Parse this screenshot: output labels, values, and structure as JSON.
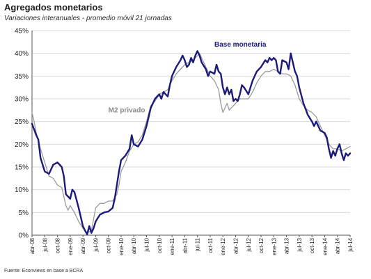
{
  "header": {
    "title": "Agregados monetarios",
    "subtitle": "Variaciones interanuales - promedio móvil 21 jornadas"
  },
  "footer": {
    "source": "Fuente: Econviews en base a BCRA"
  },
  "colors": {
    "base_monetaria": "#1a1a7a",
    "m2_privado": "#9a9a9a",
    "m2_label": "#8a8a8a",
    "grid": "#d9d9d9",
    "axis": "#555555"
  },
  "chart_data": {
    "type": "line",
    "title": "Agregados monetarios",
    "subtitle": "Variaciones interanuales - promedio móvil 21 jornadas",
    "xlabel": "",
    "ylabel": "",
    "ylim": [
      0,
      45
    ],
    "yticks": [
      "0%",
      "5%",
      "10%",
      "15%",
      "20%",
      "25%",
      "30%",
      "35%",
      "40%",
      "45%"
    ],
    "grid": "horizontal",
    "x_index_range": [
      0,
      75
    ],
    "xticks": [
      {
        "i": 0,
        "label": "abr-08"
      },
      {
        "i": 3,
        "label": "jul-08"
      },
      {
        "i": 6,
        "label": "oct-08"
      },
      {
        "i": 9,
        "label": "ene-09"
      },
      {
        "i": 12,
        "label": "abr-09"
      },
      {
        "i": 15,
        "label": "jul-09"
      },
      {
        "i": 18,
        "label": "oct-09"
      },
      {
        "i": 21,
        "label": "ene-10"
      },
      {
        "i": 24,
        "label": "abr-10"
      },
      {
        "i": 27,
        "label": "jul-10"
      },
      {
        "i": 30,
        "label": "oct-10"
      },
      {
        "i": 33,
        "label": "ene-11"
      },
      {
        "i": 36,
        "label": "abr-11"
      },
      {
        "i": 39,
        "label": "jul-11"
      },
      {
        "i": 42,
        "label": "oct-11"
      },
      {
        "i": 45,
        "label": "ene-12"
      },
      {
        "i": 48,
        "label": "abr-12"
      },
      {
        "i": 51,
        "label": "jul-12"
      },
      {
        "i": 54,
        "label": "oct-12"
      },
      {
        "i": 57,
        "label": "ene-13"
      },
      {
        "i": 60,
        "label": "abr-13"
      },
      {
        "i": 63,
        "label": "jul-13"
      },
      {
        "i": 66,
        "label": "oct-13"
      },
      {
        "i": 69,
        "label": "ene-14"
      },
      {
        "i": 72,
        "label": "abr-14"
      },
      {
        "i": 75,
        "label": "jul-14"
      }
    ],
    "series": [
      {
        "name": "Base monetaria",
        "values": [
          [
            0,
            24.5
          ],
          [
            1,
            22
          ],
          [
            1.5,
            21
          ],
          [
            2,
            17
          ],
          [
            3,
            14
          ],
          [
            4,
            13.5
          ],
          [
            5,
            15.5
          ],
          [
            6,
            16
          ],
          [
            7,
            15
          ],
          [
            7.5,
            13
          ],
          [
            8,
            9
          ],
          [
            9,
            8
          ],
          [
            9.5,
            10
          ],
          [
            10,
            9.5
          ],
          [
            11,
            6
          ],
          [
            12,
            2
          ],
          [
            12.5,
            1
          ],
          [
            13,
            0.2
          ],
          [
            13.5,
            2
          ],
          [
            14,
            0.5
          ],
          [
            14.5,
            1.5
          ],
          [
            15,
            3
          ],
          [
            16,
            4.5
          ],
          [
            17,
            5
          ],
          [
            18,
            5.2
          ],
          [
            19,
            6
          ],
          [
            19.5,
            8
          ],
          [
            20,
            11
          ],
          [
            20.5,
            14
          ],
          [
            21,
            16.5
          ],
          [
            22,
            17.5
          ],
          [
            23,
            19
          ],
          [
            23.5,
            22
          ],
          [
            24,
            20
          ],
          [
            25,
            19.5
          ],
          [
            26,
            21
          ],
          [
            27,
            24
          ],
          [
            28,
            28
          ],
          [
            29,
            30
          ],
          [
            30,
            31
          ],
          [
            30.5,
            30
          ],
          [
            31,
            31.5
          ],
          [
            32,
            30.5
          ],
          [
            32.5,
            33
          ],
          [
            33,
            35
          ],
          [
            34,
            37
          ],
          [
            35,
            38.5
          ],
          [
            35.5,
            39.5
          ],
          [
            36,
            38.5
          ],
          [
            36.5,
            37
          ],
          [
            37,
            37.5
          ],
          [
            37.5,
            39
          ],
          [
            38,
            38
          ],
          [
            38.5,
            39.5
          ],
          [
            39,
            40.5
          ],
          [
            39.5,
            39.5
          ],
          [
            40,
            38
          ],
          [
            41,
            36.5
          ],
          [
            41.5,
            35
          ],
          [
            42,
            36
          ],
          [
            43,
            35.5
          ],
          [
            43.5,
            37.5
          ],
          [
            44,
            36
          ],
          [
            44.5,
            35.5
          ],
          [
            45,
            32.5
          ],
          [
            45.5,
            31
          ],
          [
            46,
            32.5
          ],
          [
            46.5,
            31
          ],
          [
            47,
            32
          ],
          [
            47.5,
            29.5
          ],
          [
            48,
            30
          ],
          [
            48.5,
            29.5
          ],
          [
            49,
            31
          ],
          [
            49.5,
            33
          ],
          [
            50,
            32.5
          ],
          [
            51,
            31
          ],
          [
            51.5,
            32.5
          ],
          [
            52,
            34
          ],
          [
            53,
            36
          ],
          [
            54,
            37
          ],
          [
            55,
            38.5
          ],
          [
            55.5,
            38
          ],
          [
            56,
            39
          ],
          [
            56.5,
            38.5
          ],
          [
            57,
            39
          ],
          [
            57.5,
            38.5
          ],
          [
            58,
            36
          ],
          [
            58.5,
            35.5
          ],
          [
            59,
            38.5
          ],
          [
            60,
            38
          ],
          [
            60.5,
            36.5
          ],
          [
            61,
            40
          ],
          [
            61.5,
            38
          ],
          [
            62,
            36
          ],
          [
            62.5,
            35
          ],
          [
            63,
            32.5
          ],
          [
            64,
            29
          ],
          [
            65,
            26.5
          ],
          [
            66,
            25
          ],
          [
            66.5,
            24
          ],
          [
            67,
            25
          ],
          [
            68,
            23
          ],
          [
            69,
            22.5
          ],
          [
            69.5,
            21.5
          ],
          [
            70,
            19
          ],
          [
            70.5,
            17
          ],
          [
            71,
            18.5
          ],
          [
            71.5,
            17.5
          ],
          [
            72,
            19
          ],
          [
            72.5,
            20
          ],
          [
            73,
            18
          ],
          [
            73.5,
            16.5
          ],
          [
            74,
            18
          ],
          [
            74.5,
            17.5
          ],
          [
            75,
            18
          ]
        ]
      },
      {
        "name": "M2 privado",
        "values": [
          [
            0,
            27
          ],
          [
            0.5,
            25
          ],
          [
            1,
            22.5
          ],
          [
            2,
            19
          ],
          [
            3,
            16
          ],
          [
            4,
            13
          ],
          [
            5,
            12.5
          ],
          [
            6,
            11
          ],
          [
            7,
            10.5
          ],
          [
            7.5,
            8.5
          ],
          [
            8,
            6.5
          ],
          [
            8.5,
            5.5
          ],
          [
            9,
            6.5
          ],
          [
            10,
            5
          ],
          [
            11,
            3
          ],
          [
            12,
            1.5
          ],
          [
            13,
            0.5
          ],
          [
            14,
            1
          ],
          [
            14.5,
            3.5
          ],
          [
            15,
            6
          ],
          [
            16,
            7
          ],
          [
            17,
            7
          ],
          [
            18,
            7.5
          ],
          [
            19,
            7.5
          ],
          [
            20,
            9
          ],
          [
            20.5,
            11
          ],
          [
            21,
            14
          ],
          [
            22,
            16
          ],
          [
            23,
            18.5
          ],
          [
            24,
            20
          ],
          [
            25,
            20.5
          ],
          [
            26,
            22
          ],
          [
            27,
            25
          ],
          [
            28,
            28.5
          ],
          [
            29,
            29.5
          ],
          [
            30,
            31
          ],
          [
            31,
            31.5
          ],
          [
            32,
            32
          ],
          [
            33,
            34
          ],
          [
            34,
            35.5
          ],
          [
            35,
            36.5
          ],
          [
            36,
            37.5
          ],
          [
            37,
            38
          ],
          [
            38,
            38.5
          ],
          [
            39,
            39.5
          ],
          [
            39.5,
            40
          ],
          [
            40,
            39
          ],
          [
            41,
            37
          ],
          [
            42,
            35
          ],
          [
            43,
            34
          ],
          [
            44,
            32
          ],
          [
            44.5,
            29
          ],
          [
            45,
            27
          ],
          [
            46,
            29
          ],
          [
            46.5,
            27.5
          ],
          [
            47,
            28
          ],
          [
            48,
            29
          ],
          [
            49,
            30
          ],
          [
            50,
            30
          ],
          [
            51,
            30
          ],
          [
            52,
            31.5
          ],
          [
            53,
            33.5
          ],
          [
            54,
            35
          ],
          [
            55,
            36
          ],
          [
            56,
            36
          ],
          [
            57,
            36.5
          ],
          [
            58,
            36
          ],
          [
            59,
            35.5
          ],
          [
            60,
            35.5
          ],
          [
            61,
            35
          ],
          [
            62,
            33
          ],
          [
            63,
            30
          ],
          [
            64,
            28.5
          ],
          [
            65,
            27.5
          ],
          [
            66,
            27
          ],
          [
            67,
            26
          ],
          [
            68,
            24
          ],
          [
            69,
            22
          ],
          [
            70,
            20
          ],
          [
            71,
            19
          ],
          [
            72,
            19
          ],
          [
            73,
            18.5
          ],
          [
            74,
            19
          ],
          [
            75,
            19.5
          ]
        ]
      }
    ],
    "annotations": [
      {
        "series": "Base monetaria",
        "text": "Base monetaria",
        "near_i": 43,
        "near_y": 41.5
      },
      {
        "series": "M2 privado",
        "text": "M2 privado",
        "near_i": 18,
        "near_y": 27
      }
    ]
  }
}
